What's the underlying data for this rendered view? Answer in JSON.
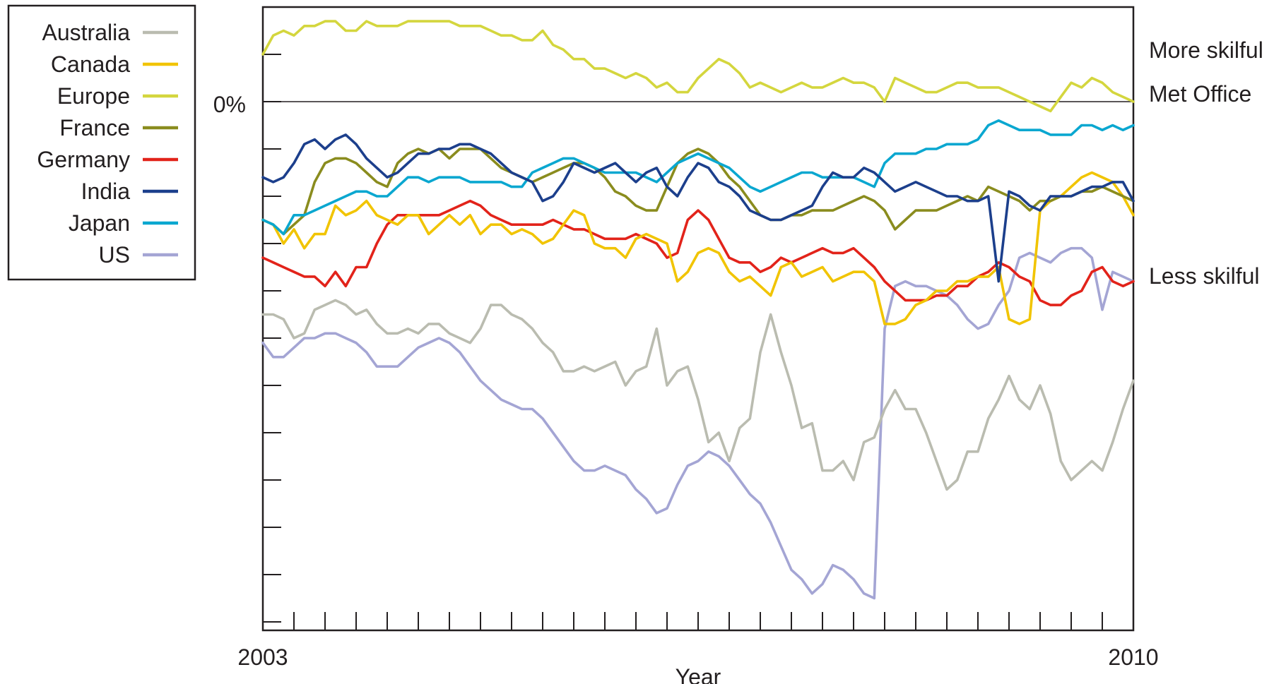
{
  "chart_data": {
    "type": "line",
    "title": "",
    "xlabel": "Year",
    "ylabel": "",
    "x_start": 2003,
    "x_end": 2010,
    "x_tick_labels": [
      "2003",
      "2010"
    ],
    "months": 85,
    "y_zero_label": "0%",
    "ylim": [
      -11,
      2
    ],
    "reference_line": 0,
    "right_annotations": [
      "More skilful",
      "Met Office",
      "Less skilful"
    ],
    "legend_position": "outside-left",
    "series": [
      {
        "name": "Australia",
        "color": "#babcb0",
        "values": [
          -4.5,
          -4.5,
          -4.6,
          -5.0,
          -4.9,
          -4.4,
          -4.3,
          -4.2,
          -4.3,
          -4.5,
          -4.4,
          -4.7,
          -4.9,
          -4.9,
          -4.8,
          -4.9,
          -4.7,
          -4.7,
          -4.9,
          -5.0,
          -5.1,
          -4.8,
          -4.3,
          -4.3,
          -4.5,
          -4.6,
          -4.8,
          -5.1,
          -5.3,
          -5.7,
          -5.7,
          -5.6,
          -5.7,
          -5.6,
          -5.5,
          -6.0,
          -5.7,
          -5.6,
          -4.8,
          -6.0,
          -5.7,
          -5.6,
          -6.3,
          -7.2,
          -7.0,
          -7.6,
          -6.9,
          -6.7,
          -5.3,
          -4.5,
          -5.3,
          -6.0,
          -6.9,
          -6.8,
          -7.8,
          -7.8,
          -7.6,
          -8.0,
          -7.2,
          -7.1,
          -6.5,
          -6.1,
          -6.5,
          -6.5,
          -7.0,
          -7.6,
          -8.2,
          -8.0,
          -7.4,
          -7.4,
          -6.7,
          -6.3,
          -5.8,
          -6.3,
          -6.5,
          -6.0,
          -6.6,
          -7.6,
          -8.0,
          -7.8,
          -7.6,
          -7.8,
          -7.2,
          -6.5,
          -5.9
        ]
      },
      {
        "name": "Canada",
        "color": "#f1c400",
        "values": [
          -2.5,
          -2.6,
          -3.0,
          -2.7,
          -3.1,
          -2.8,
          -2.8,
          -2.2,
          -2.4,
          -2.3,
          -2.1,
          -2.4,
          -2.5,
          -2.6,
          -2.4,
          -2.4,
          -2.8,
          -2.6,
          -2.4,
          -2.6,
          -2.4,
          -2.8,
          -2.6,
          -2.6,
          -2.8,
          -2.7,
          -2.8,
          -3.0,
          -2.9,
          -2.6,
          -2.3,
          -2.4,
          -3.0,
          -3.1,
          -3.1,
          -3.3,
          -2.9,
          -2.8,
          -2.9,
          -3.0,
          -3.8,
          -3.6,
          -3.2,
          -3.1,
          -3.2,
          -3.6,
          -3.8,
          -3.7,
          -3.9,
          -4.1,
          -3.5,
          -3.4,
          -3.7,
          -3.6,
          -3.5,
          -3.8,
          -3.7,
          -3.6,
          -3.6,
          -3.8,
          -4.7,
          -4.7,
          -4.6,
          -4.3,
          -4.2,
          -4.0,
          -4.0,
          -3.8,
          -3.8,
          -3.7,
          -3.7,
          -3.5,
          -4.6,
          -4.7,
          -4.6,
          -2.3,
          -2.1,
          -2.0,
          -1.8,
          -1.6,
          -1.5,
          -1.6,
          -1.7,
          -2.0,
          -2.4
        ]
      },
      {
        "name": "Europe",
        "color": "#d4d63e",
        "values": [
          1.0,
          1.4,
          1.5,
          1.4,
          1.6,
          1.6,
          1.7,
          1.7,
          1.5,
          1.5,
          1.7,
          1.6,
          1.6,
          1.6,
          1.7,
          1.7,
          1.7,
          1.7,
          1.7,
          1.6,
          1.6,
          1.6,
          1.5,
          1.4,
          1.4,
          1.3,
          1.3,
          1.5,
          1.2,
          1.1,
          0.9,
          0.9,
          0.7,
          0.7,
          0.6,
          0.5,
          0.6,
          0.5,
          0.3,
          0.4,
          0.2,
          0.2,
          0.5,
          0.7,
          0.9,
          0.8,
          0.6,
          0.3,
          0.4,
          0.3,
          0.2,
          0.3,
          0.4,
          0.3,
          0.3,
          0.4,
          0.5,
          0.4,
          0.4,
          0.3,
          0.0,
          0.5,
          0.4,
          0.3,
          0.2,
          0.2,
          0.3,
          0.4,
          0.4,
          0.3,
          0.3,
          0.3,
          0.2,
          0.1,
          0.0,
          -0.1,
          -0.2,
          0.1,
          0.4,
          0.3,
          0.5,
          0.4,
          0.2,
          0.1,
          0.0
        ]
      },
      {
        "name": "France",
        "color": "#8a8c1e",
        "values": [
          -2.5,
          -2.6,
          -2.8,
          -2.6,
          -2.4,
          -1.7,
          -1.3,
          -1.2,
          -1.2,
          -1.3,
          -1.5,
          -1.7,
          -1.8,
          -1.3,
          -1.1,
          -1.0,
          -1.1,
          -1.0,
          -1.2,
          -1.0,
          -1.0,
          -1.0,
          -1.2,
          -1.4,
          -1.5,
          -1.6,
          -1.7,
          -1.6,
          -1.5,
          -1.4,
          -1.3,
          -1.3,
          -1.4,
          -1.6,
          -1.9,
          -2.0,
          -2.2,
          -2.3,
          -2.3,
          -1.8,
          -1.3,
          -1.1,
          -1.0,
          -1.1,
          -1.3,
          -1.6,
          -1.8,
          -2.1,
          -2.4,
          -2.5,
          -2.5,
          -2.4,
          -2.4,
          -2.3,
          -2.3,
          -2.3,
          -2.2,
          -2.1,
          -2.0,
          -2.1,
          -2.3,
          -2.7,
          -2.5,
          -2.3,
          -2.3,
          -2.3,
          -2.2,
          -2.1,
          -2.0,
          -2.1,
          -1.8,
          -1.9,
          -2.0,
          -2.1,
          -2.3,
          -2.1,
          -2.1,
          -2.0,
          -2.0,
          -1.9,
          -1.9,
          -1.8,
          -1.9,
          -2.0,
          -2.1
        ]
      },
      {
        "name": "Germany",
        "color": "#e2231a",
        "values": [
          -3.3,
          -3.4,
          -3.5,
          -3.6,
          -3.7,
          -3.7,
          -3.9,
          -3.6,
          -3.9,
          -3.5,
          -3.5,
          -3.0,
          -2.6,
          -2.4,
          -2.4,
          -2.4,
          -2.4,
          -2.4,
          -2.3,
          -2.2,
          -2.1,
          -2.2,
          -2.4,
          -2.5,
          -2.6,
          -2.6,
          -2.6,
          -2.6,
          -2.5,
          -2.6,
          -2.7,
          -2.7,
          -2.8,
          -2.9,
          -2.9,
          -2.9,
          -2.8,
          -2.9,
          -3.0,
          -3.3,
          -3.2,
          -2.5,
          -2.3,
          -2.5,
          -2.9,
          -3.3,
          -3.4,
          -3.4,
          -3.6,
          -3.5,
          -3.3,
          -3.4,
          -3.3,
          -3.2,
          -3.1,
          -3.2,
          -3.2,
          -3.1,
          -3.3,
          -3.5,
          -3.8,
          -4.0,
          -4.2,
          -4.2,
          -4.2,
          -4.1,
          -4.1,
          -3.9,
          -3.9,
          -3.7,
          -3.6,
          -3.4,
          -3.5,
          -3.7,
          -3.8,
          -4.2,
          -4.3,
          -4.3,
          -4.1,
          -4.0,
          -3.6,
          -3.5,
          -3.8,
          -3.9,
          -3.8
        ]
      },
      {
        "name": "India",
        "color": "#1c3f8c",
        "values": [
          -1.6,
          -1.7,
          -1.6,
          -1.3,
          -0.9,
          -0.8,
          -1.0,
          -0.8,
          -0.7,
          -0.9,
          -1.2,
          -1.4,
          -1.6,
          -1.5,
          -1.3,
          -1.1,
          -1.1,
          -1.0,
          -1.0,
          -0.9,
          -0.9,
          -1.0,
          -1.1,
          -1.3,
          -1.5,
          -1.6,
          -1.7,
          -2.1,
          -2.0,
          -1.7,
          -1.3,
          -1.4,
          -1.5,
          -1.4,
          -1.3,
          -1.5,
          -1.7,
          -1.5,
          -1.4,
          -1.8,
          -2.0,
          -1.6,
          -1.3,
          -1.4,
          -1.7,
          -1.8,
          -2.0,
          -2.3,
          -2.4,
          -2.5,
          -2.5,
          -2.4,
          -2.3,
          -2.2,
          -1.8,
          -1.5,
          -1.6,
          -1.6,
          -1.4,
          -1.5,
          -1.7,
          -1.9,
          -1.8,
          -1.7,
          -1.8,
          -1.9,
          -2.0,
          -2.0,
          -2.1,
          -2.1,
          -2.0,
          -3.8,
          -1.9,
          -2.0,
          -2.2,
          -2.3,
          -2.0,
          -2.0,
          -2.0,
          -1.9,
          -1.8,
          -1.8,
          -1.7,
          -1.7,
          -2.1
        ]
      },
      {
        "name": "Japan",
        "color": "#0aa7d0",
        "values": [
          -2.5,
          -2.6,
          -2.8,
          -2.4,
          -2.4,
          -2.3,
          -2.2,
          -2.1,
          -2.0,
          -1.9,
          -1.9,
          -2.0,
          -2.0,
          -1.8,
          -1.6,
          -1.6,
          -1.7,
          -1.6,
          -1.6,
          -1.6,
          -1.7,
          -1.7,
          -1.7,
          -1.7,
          -1.8,
          -1.8,
          -1.5,
          -1.4,
          -1.3,
          -1.2,
          -1.2,
          -1.3,
          -1.4,
          -1.5,
          -1.5,
          -1.5,
          -1.5,
          -1.6,
          -1.7,
          -1.5,
          -1.3,
          -1.2,
          -1.1,
          -1.2,
          -1.3,
          -1.4,
          -1.6,
          -1.8,
          -1.9,
          -1.8,
          -1.7,
          -1.6,
          -1.5,
          -1.5,
          -1.6,
          -1.6,
          -1.6,
          -1.6,
          -1.7,
          -1.8,
          -1.3,
          -1.1,
          -1.1,
          -1.1,
          -1.0,
          -1.0,
          -0.9,
          -0.9,
          -0.9,
          -0.8,
          -0.5,
          -0.4,
          -0.5,
          -0.6,
          -0.6,
          -0.6,
          -0.7,
          -0.7,
          -0.7,
          -0.5,
          -0.5,
          -0.6,
          -0.5,
          -0.6,
          -0.5
        ]
      },
      {
        "name": "US",
        "color": "#a4a5d4",
        "values": [
          -5.1,
          -5.4,
          -5.4,
          -5.2,
          -5.0,
          -5.0,
          -4.9,
          -4.9,
          -5.0,
          -5.1,
          -5.3,
          -5.6,
          -5.6,
          -5.6,
          -5.4,
          -5.2,
          -5.1,
          -5.0,
          -5.1,
          -5.3,
          -5.6,
          -5.9,
          -6.1,
          -6.3,
          -6.4,
          -6.5,
          -6.5,
          -6.7,
          -7.0,
          -7.3,
          -7.6,
          -7.8,
          -7.8,
          -7.7,
          -7.8,
          -7.9,
          -8.2,
          -8.4,
          -8.7,
          -8.6,
          -8.1,
          -7.7,
          -7.6,
          -7.4,
          -7.5,
          -7.7,
          -8.0,
          -8.3,
          -8.5,
          -8.9,
          -9.4,
          -9.9,
          -10.1,
          -10.4,
          -10.2,
          -9.8,
          -9.9,
          -10.1,
          -10.4,
          -10.5,
          -4.8,
          -3.9,
          -3.8,
          -3.9,
          -3.9,
          -4.0,
          -4.1,
          -4.3,
          -4.6,
          -4.8,
          -4.7,
          -4.3,
          -4.0,
          -3.3,
          -3.2,
          -3.3,
          -3.4,
          -3.2,
          -3.1,
          -3.1,
          -3.3,
          -4.4,
          -3.6,
          -3.7,
          -3.8
        ]
      }
    ]
  }
}
